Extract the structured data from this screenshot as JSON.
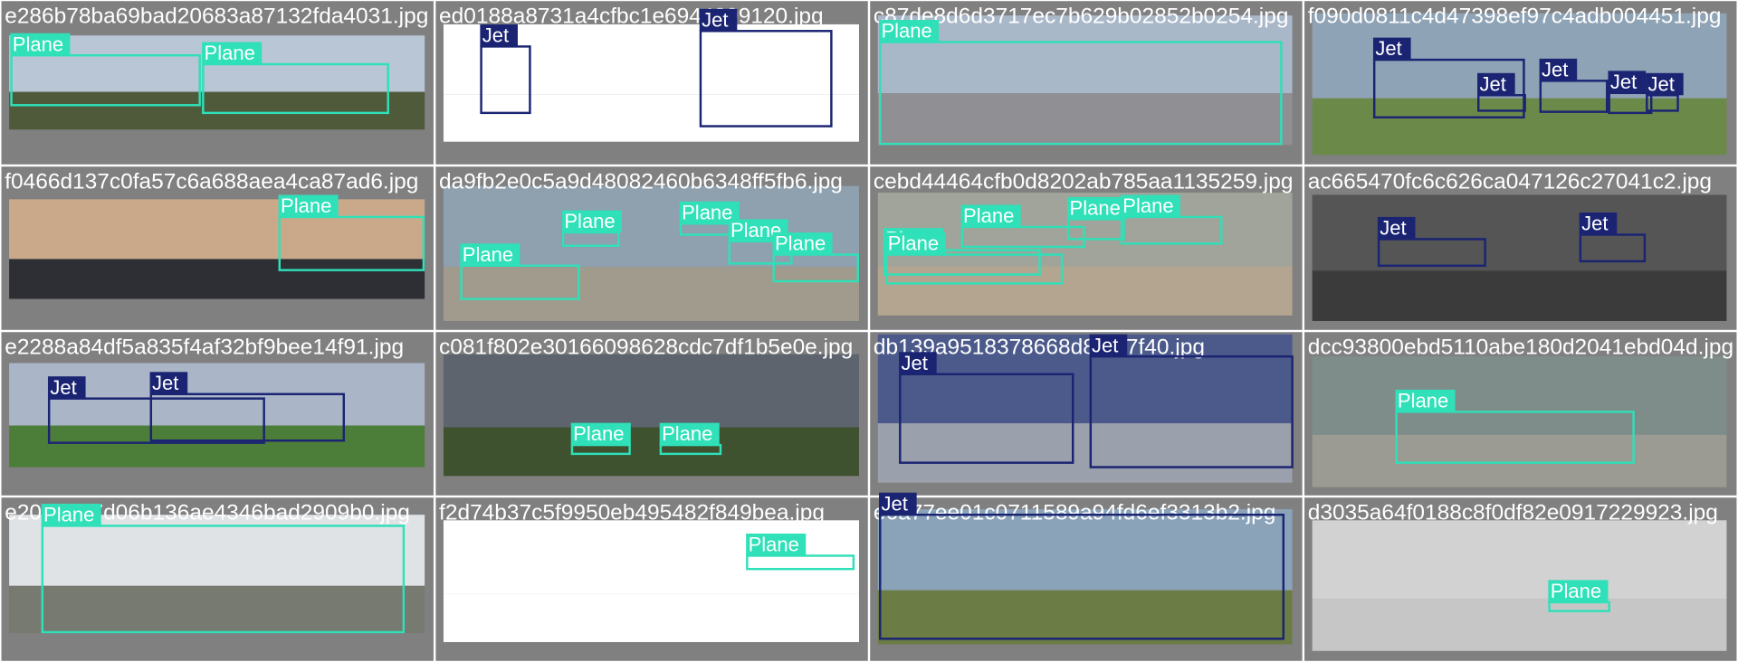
{
  "tiles": [
    {
      "file": "e286b78ba69bad20683a87132fda4031.jpg",
      "boxes": [
        "Plane",
        "Plane"
      ]
    },
    {
      "file": "ed0188a8731a4cfbc1e6944299120.jpg",
      "boxes": [
        "Jet",
        "Jet"
      ]
    },
    {
      "file": "c87de8d6d3717ec7b629b02852b0254.jpg",
      "boxes": [
        "Plane"
      ]
    },
    {
      "file": "f090d0811c4d47398ef97c4adb004451.jpg",
      "boxes": [
        "Jet",
        "Jet",
        "Jet",
        "Jet",
        "Jet"
      ]
    },
    {
      "file": "f0466d137c0fa57c6a688aea4ca87ad6.jpg",
      "boxes": [
        "Plane"
      ]
    },
    {
      "file": "da9fb2e0c5a9d48082460b6348ff5fb6.jpg",
      "boxes": [
        "Plane",
        "Plane",
        "Plane",
        "Plane",
        "Plane"
      ]
    },
    {
      "file": "cebd44464cfb0d8202ab785aa1135259.jpg",
      "boxes": [
        "Plane",
        "Plane",
        "Plane",
        "Plane",
        "Plane"
      ]
    },
    {
      "file": "ac665470fc6c626ca047126c27041c2.jpg",
      "boxes": [
        "Jet",
        "Jet"
      ]
    },
    {
      "file": "e2288a84df5a835f4af32bf9bee14f91.jpg",
      "boxes": [
        "Jet",
        "Jet"
      ]
    },
    {
      "file": "c081f802e30166098628cdc7df1b5e0e.jpg",
      "boxes": [
        "Plane",
        "Plane"
      ]
    },
    {
      "file": "db139a9518378668d8f4a7f40.jpg",
      "boxes": [
        "Jet",
        "Jet"
      ]
    },
    {
      "file": "dcc93800ebd5110abe180d2041ebd04d.jpg",
      "boxes": [
        "Plane"
      ]
    },
    {
      "file": "e2054307d06b136ae4346bad2909b0.jpg",
      "boxes": [
        "Plane"
      ]
    },
    {
      "file": "f2d74b37c5f9950eb495482f849bea.jpg",
      "boxes": [
        "Plane"
      ]
    },
    {
      "file": "e6a77ee01c0711589a94fd6ef3313b2.jpg",
      "boxes": [
        "Jet"
      ]
    },
    {
      "file": "d3035a64f0188c8f0df82e0917229923.jpg",
      "boxes": [
        "Plane"
      ]
    }
  ]
}
